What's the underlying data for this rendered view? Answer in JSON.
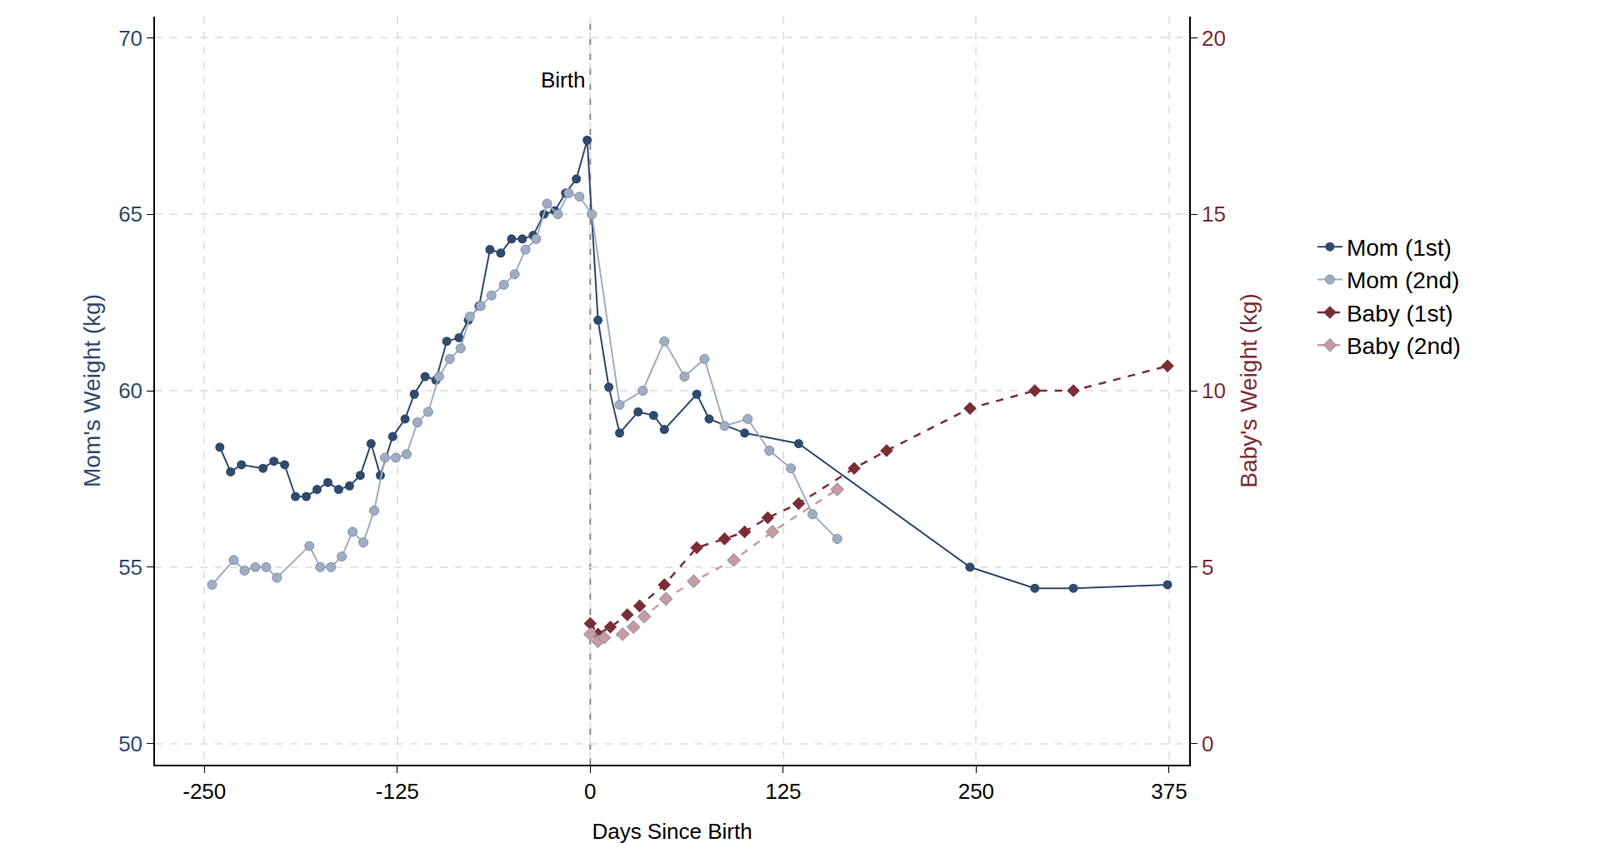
{
  "chart_data": {
    "type": "line",
    "x_label": "Days Since Birth",
    "y_label": "Mom's Weight (kg)",
    "y2_label": "Baby's Weight (kg)",
    "xlim": [
      -282,
      388
    ],
    "xticks": [
      -250,
      -125,
      0,
      125,
      250,
      375
    ],
    "ylim": [
      49.4,
      70.6
    ],
    "yticks": [
      50,
      55,
      60,
      65,
      70
    ],
    "y2lim": [
      -0.6,
      20.6
    ],
    "y2ticks": [
      0,
      5,
      10,
      15,
      20
    ],
    "grid": true,
    "legend": "right",
    "annotations": [
      {
        "text": "Birth",
        "x": 0
      }
    ],
    "series": [
      {
        "name": "Mom (1st)",
        "color": "#2f4a6d",
        "marker": "circle",
        "line_style": "solid",
        "axis": "y",
        "x": [
          -240,
          -233,
          -226,
          -212,
          -205,
          -198,
          -191,
          -184,
          -177,
          -170,
          -163,
          -156,
          -149,
          -142,
          -136,
          -128,
          -120,
          -114,
          -107,
          -100,
          -93,
          -85,
          -79,
          -72,
          -65,
          -58,
          -51,
          -44,
          -37,
          -30,
          -23,
          -16,
          -9,
          -2,
          5,
          12,
          19,
          31,
          41,
          48,
          69,
          77,
          100,
          135,
          246,
          288,
          313,
          374
        ],
        "values": [
          58.4,
          57.7,
          57.9,
          57.8,
          58.0,
          57.9,
          57.0,
          57.0,
          57.2,
          57.4,
          57.2,
          57.3,
          57.6,
          58.5,
          57.6,
          58.7,
          59.2,
          59.9,
          60.4,
          60.3,
          61.4,
          61.5,
          62.0,
          62.4,
          64.0,
          63.9,
          64.3,
          64.3,
          64.4,
          65.0,
          65.1,
          65.6,
          66.0,
          67.1,
          62.0,
          60.1,
          58.8,
          59.4,
          59.3,
          58.9,
          59.9,
          59.2,
          58.8,
          58.5,
          55.0,
          54.4,
          54.4,
          54.5
        ]
      },
      {
        "name": "Mom (2nd)",
        "color": "#9fadc3",
        "marker": "circle",
        "line_style": "solid",
        "axis": "y",
        "x": [
          -245,
          -231,
          -224,
          -217,
          -210,
          -203,
          -182,
          -175,
          -168,
          -161,
          -154,
          -147,
          -140,
          -133,
          -126,
          -119,
          -112,
          -105,
          -98,
          -91,
          -84,
          -78,
          -71,
          -64,
          -56,
          -49,
          -42,
          -35,
          -28,
          -21,
          -14,
          -7,
          1,
          19,
          34,
          48,
          61,
          74,
          87,
          102,
          116,
          130,
          144,
          160
        ],
        "values": [
          54.5,
          55.2,
          54.9,
          55.0,
          55.0,
          54.7,
          55.6,
          55.0,
          55.0,
          55.3,
          56.0,
          55.7,
          56.6,
          58.1,
          58.1,
          58.2,
          59.1,
          59.4,
          60.4,
          60.9,
          61.2,
          62.1,
          62.4,
          62.7,
          63.0,
          63.3,
          64.0,
          64.3,
          65.3,
          65.0,
          65.6,
          65.5,
          65.0,
          59.6,
          60.0,
          61.4,
          60.4,
          60.9,
          59.0,
          59.2,
          58.3,
          57.8,
          56.5,
          55.8
        ]
      },
      {
        "name": "Baby (1st)",
        "color": "#7b2d36",
        "marker": "diamond",
        "line_style": "dash",
        "axis": "y2",
        "x": [
          0,
          5,
          13,
          24,
          32,
          48,
          69,
          87,
          100,
          115,
          135,
          171,
          192,
          246,
          288,
          313,
          374
        ],
        "values": [
          3.4,
          3.1,
          3.3,
          3.65,
          3.9,
          4.5,
          5.55,
          5.8,
          6.0,
          6.4,
          6.8,
          7.8,
          8.3,
          9.5,
          10.0,
          10.0,
          10.7
        ]
      },
      {
        "name": "Baby (2nd)",
        "color": "#c99a9e",
        "marker": "diamond",
        "line_style": "dash",
        "axis": "y2",
        "x": [
          0,
          5,
          9,
          21,
          28,
          35,
          49,
          67,
          93,
          118,
          160
        ],
        "values": [
          3.1,
          2.9,
          3.0,
          3.1,
          3.3,
          3.6,
          4.1,
          4.6,
          5.2,
          6.0,
          7.2
        ]
      }
    ]
  }
}
